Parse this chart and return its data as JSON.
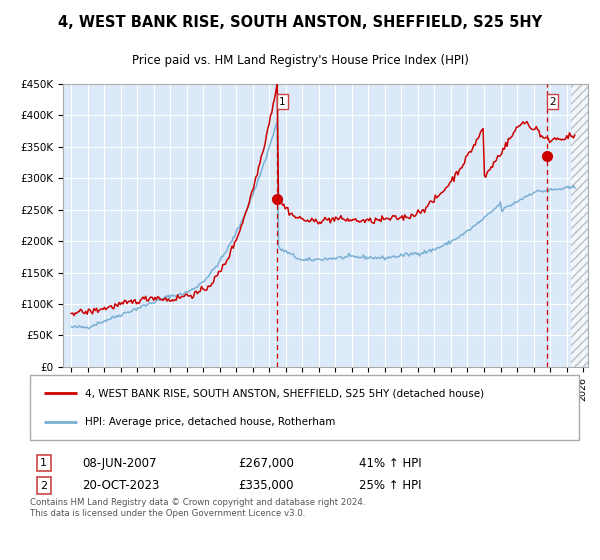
{
  "title": "4, WEST BANK RISE, SOUTH ANSTON, SHEFFIELD, S25 5HY",
  "subtitle": "Price paid vs. HM Land Registry's House Price Index (HPI)",
  "red_label": "4, WEST BANK RISE, SOUTH ANSTON, SHEFFIELD, S25 5HY (detached house)",
  "blue_label": "HPI: Average price, detached house, Rotherham",
  "annotation1_date": "08-JUN-2007",
  "annotation1_price": "£267,000",
  "annotation1_hpi": "41% ↑ HPI",
  "annotation2_date": "20-OCT-2023",
  "annotation2_price": "£335,000",
  "annotation2_hpi": "25% ↑ HPI",
  "footer": "Contains HM Land Registry data © Crown copyright and database right 2024.\nThis data is licensed under the Open Government Licence v3.0.",
  "ylim": [
    0,
    450000
  ],
  "yticks": [
    0,
    50000,
    100000,
    150000,
    200000,
    250000,
    300000,
    350000,
    400000,
    450000
  ],
  "background_color": "#dce9f8",
  "grid_color": "#ffffff",
  "red_color": "#cc0000",
  "blue_color": "#7ab0d4",
  "vline_color": "#cc0000",
  "marker1_x": 2007.44,
  "marker1_y": 267000,
  "marker2_x": 2023.8,
  "marker2_y": 335000,
  "xmin": 1994.5,
  "xmax": 2026.3,
  "hatch_start": 2025.3
}
